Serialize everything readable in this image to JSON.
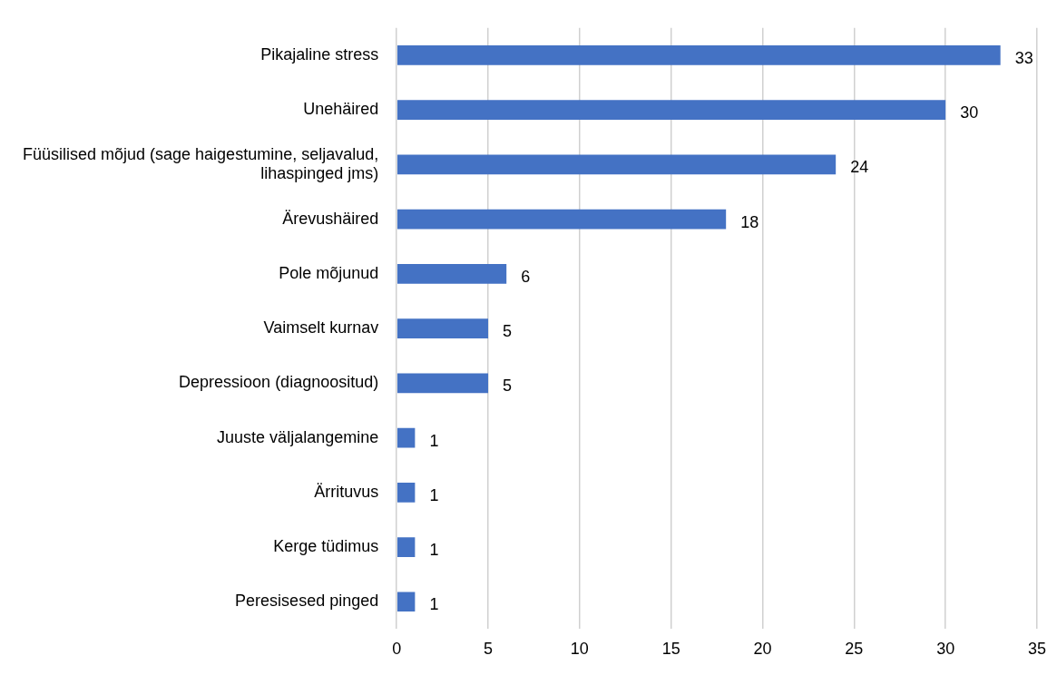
{
  "chart_data": {
    "type": "bar",
    "orientation": "horizontal",
    "categories": [
      "Pikajaline stress",
      "Unehäired",
      "Füüsilised mõjud (sage haigestumine, seljavalud, lihaspinged jms)",
      "Ärevushäired",
      "Pole mõjunud",
      "Vaimselt kurnav",
      "Depressioon (diagnoositud)",
      "Juuste väljalangemine",
      "Ärrituvus",
      "Kerge tüdimus",
      "Peresisesed pinged"
    ],
    "values": [
      33,
      30,
      24,
      18,
      6,
      5,
      5,
      1,
      1,
      1,
      1
    ],
    "color": "#4472c4",
    "xlim": [
      0,
      35
    ],
    "xticks": [
      0,
      5,
      10,
      15,
      20,
      25,
      30,
      35
    ],
    "grid": "x",
    "data_labels": true,
    "legend": false
  }
}
